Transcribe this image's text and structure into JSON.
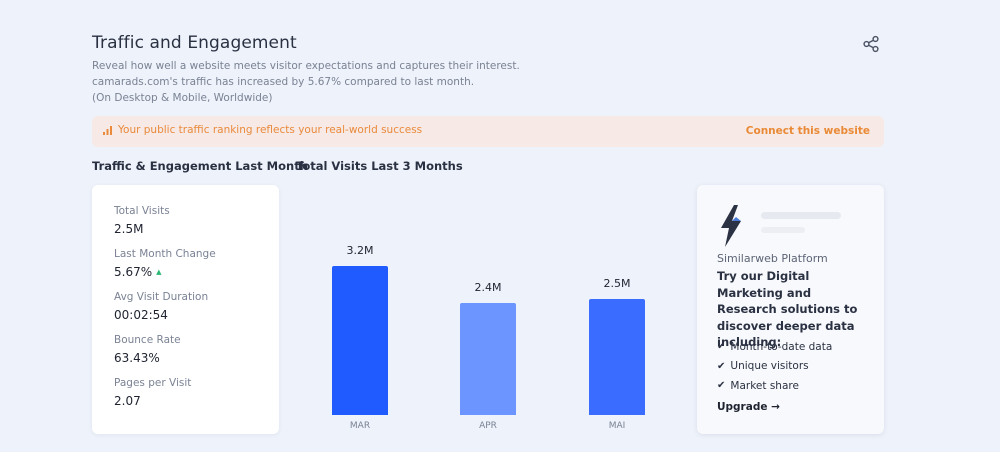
{
  "header": {
    "title": "Traffic and Engagement",
    "desc_line1": "Reveal how well a website meets visitor expectations and captures their interest.",
    "desc_line2": "camarads.com's traffic has increased by 5.67% compared to last month.",
    "desc_line3": "(On Desktop & Mobile, Worldwide)"
  },
  "banner": {
    "message": "Your public traffic ranking reflects your real-world success",
    "cta": "Connect this website"
  },
  "sections": {
    "left": "Traffic & Engagement Last Month",
    "middle": "Total Visits Last 3 Months"
  },
  "stats": [
    {
      "label": "Total Visits",
      "value": "2.5M"
    },
    {
      "label": "Last Month Change",
      "value": "5.67%",
      "indicator": "▲"
    },
    {
      "label": "Avg Visit Duration",
      "value": "00:02:54"
    },
    {
      "label": "Bounce Rate",
      "value": "63.43%"
    },
    {
      "label": "Pages per Visit",
      "value": "2.07"
    }
  ],
  "chart_data": {
    "type": "bar",
    "title": "Total Visits Last 3 Months",
    "categories": [
      "MAR",
      "APR",
      "MAI"
    ],
    "values": [
      3.2,
      2.4,
      2.5
    ],
    "value_labels": [
      "3.2M",
      "2.4M",
      "2.5M"
    ],
    "ylim": [
      0,
      3.2
    ],
    "colors": [
      "#1f5bff",
      "#6d95ff",
      "#3a6dff"
    ]
  },
  "promo": {
    "brand": "Similarweb Platform",
    "headline": "Try our Digital Marketing and Research solutions to discover deeper data including:",
    "features": [
      "Month-to-date data",
      "Unique visitors",
      "Market share"
    ],
    "upgrade": "Upgrade →"
  },
  "colors": {
    "accent_orange": "#ea8a36",
    "banner_bg": "#f7e9e5",
    "positive_green": "#2bb673"
  }
}
